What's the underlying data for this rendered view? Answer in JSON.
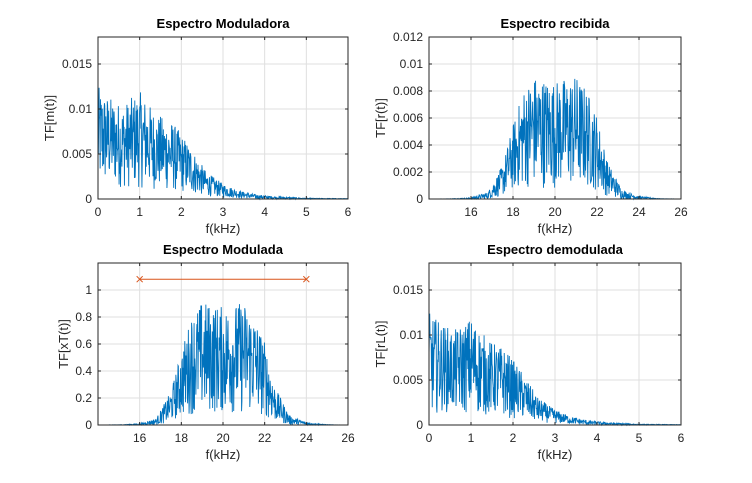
{
  "chart_data": [
    {
      "type": "line",
      "title": "Espectro Moduladora",
      "xlabel": "f(kHz)",
      "ylabel": "TF[m(t)]",
      "xlim": [
        0,
        6
      ],
      "ylim": [
        0,
        0.018
      ],
      "xticks": [
        0,
        1,
        2,
        3,
        4,
        5,
        6
      ],
      "xtick_labels": [
        "0",
        "1",
        "2",
        "3",
        "4",
        "5",
        "6"
      ],
      "yticks": [
        0,
        0.005,
        0.01,
        0.015
      ],
      "ytick_labels": [
        "0",
        "0.005",
        "0.01",
        "0.015"
      ],
      "grid": true,
      "series": [
        {
          "color": "#0072BD",
          "kind": "noisy-spectrum",
          "envelope": {
            "x": [
              0,
              0.3,
              0.6,
              1.0,
              1.4,
              1.8,
              2.2,
              2.6,
              3.0,
              3.4,
              3.8,
              4.2,
              4.6,
              5.0,
              6.0
            ],
            "upper": [
              0.0125,
              0.0113,
              0.0105,
              0.012,
              0.0095,
              0.0085,
              0.006,
              0.003,
              0.0017,
              0.0009,
              0.0005,
              0.0003,
              0.0002,
              0.0001,
              5e-05
            ],
            "lower": [
              0.001,
              0.0015,
              0.0012,
              0.0012,
              0.001,
              0.0008,
              0.0006,
              0.0003,
              0.0002,
              0.0001,
              0,
              0,
              0,
              0,
              0
            ]
          }
        }
      ]
    },
    {
      "type": "line",
      "title": "Espectro recibida",
      "xlabel": "f(kHz)",
      "ylabel": "TF[r(t)]",
      "xlim": [
        14,
        26
      ],
      "ylim": [
        0,
        0.012
      ],
      "xticks": [
        16,
        18,
        20,
        22,
        24,
        26
      ],
      "xtick_labels": [
        "16",
        "18",
        "20",
        "22",
        "24",
        "26"
      ],
      "yticks": [
        0,
        0.002,
        0.004,
        0.006,
        0.008,
        0.01,
        0.012
      ],
      "ytick_labels": [
        "0",
        "0.002",
        "0.004",
        "0.006",
        "0.008",
        "0.01",
        "0.012"
      ],
      "grid": true,
      "series": [
        {
          "color": "#0072BD",
          "kind": "noisy-spectrum",
          "envelope": {
            "x": [
              14,
              15,
              16,
              16.8,
              17.5,
              18,
              18.5,
              19,
              20,
              21,
              21.5,
              22,
              22.5,
              23.2,
              24,
              25,
              26
            ],
            "upper": [
              0,
              2e-05,
              0.0001,
              0.0005,
              0.0025,
              0.0055,
              0.0082,
              0.0092,
              0.0088,
              0.0092,
              0.0082,
              0.0062,
              0.0028,
              0.0007,
              0.0002,
              3e-05,
              0
            ],
            "lower": [
              0,
              0,
              0,
              0,
              0.0002,
              0.0006,
              0.0008,
              0.0008,
              0.0008,
              0.0008,
              0.0008,
              0.0006,
              0.0002,
              0,
              0,
              0,
              0
            ]
          }
        }
      ]
    },
    {
      "type": "line",
      "title": "Espectro Modulada",
      "xlabel": "f(kHz)",
      "ylabel": "TF[xT(t)]",
      "xlim": [
        14,
        26
      ],
      "ylim": [
        0,
        1.2
      ],
      "xticks": [
        16,
        18,
        20,
        22,
        24,
        26
      ],
      "xtick_labels": [
        "16",
        "18",
        "20",
        "22",
        "24",
        "26"
      ],
      "yticks": [
        0,
        0.2,
        0.4,
        0.6,
        0.8,
        1
      ],
      "ytick_labels": [
        "0",
        "0.2",
        "0.4",
        "0.6",
        "0.8",
        "1"
      ],
      "grid": true,
      "series": [
        {
          "color": "#0072BD",
          "kind": "noisy-spectrum",
          "envelope": {
            "x": [
              14,
              15,
              16,
              16.8,
              17.5,
              18,
              18.5,
              19,
              20,
              21,
              21.5,
              22,
              22.5,
              23.2,
              24,
              25,
              26
            ],
            "upper": [
              0,
              0.002,
              0.01,
              0.05,
              0.25,
              0.55,
              0.82,
              0.92,
              0.88,
              0.92,
              0.82,
              0.62,
              0.28,
              0.07,
              0.02,
              0.003,
              0
            ],
            "lower": [
              0,
              0,
              0,
              0,
              0.02,
              0.06,
              0.08,
              0.08,
              0.08,
              0.08,
              0.08,
              0.06,
              0.02,
              0,
              0,
              0,
              0
            ]
          }
        },
        {
          "color": "#D95319",
          "kind": "line-markers",
          "marker": "x",
          "x": [
            16,
            24
          ],
          "y": [
            1.08,
            1.08
          ]
        }
      ]
    },
    {
      "type": "line",
      "title": "Espectro demodulada",
      "xlabel": "f(kHz)",
      "ylabel": "TF[rL(t)]",
      "xlim": [
        0,
        6
      ],
      "ylim": [
        0,
        0.018
      ],
      "xticks": [
        0,
        1,
        2,
        3,
        4,
        5,
        6
      ],
      "xtick_labels": [
        "0",
        "1",
        "2",
        "3",
        "4",
        "5",
        "6"
      ],
      "yticks": [
        0,
        0.005,
        0.01,
        0.015
      ],
      "ytick_labels": [
        "0",
        "0.005",
        "0.01",
        "0.015"
      ],
      "grid": true,
      "series": [
        {
          "color": "#0072BD",
          "kind": "noisy-spectrum",
          "envelope": {
            "x": [
              0,
              0.3,
              0.6,
              1.0,
              1.4,
              1.8,
              2.2,
              2.6,
              3.0,
              3.4,
              3.8,
              4.2,
              4.6,
              5.0,
              6.0
            ],
            "upper": [
              0.0125,
              0.0113,
              0.0105,
              0.012,
              0.0095,
              0.0085,
              0.006,
              0.003,
              0.0017,
              0.0009,
              0.0005,
              0.0003,
              0.0002,
              0.0001,
              5e-05
            ],
            "lower": [
              0.001,
              0.0015,
              0.0012,
              0.0012,
              0.001,
              0.0008,
              0.0006,
              0.0003,
              0.0002,
              0.0001,
              0,
              0,
              0,
              0,
              0
            ]
          }
        }
      ]
    }
  ]
}
